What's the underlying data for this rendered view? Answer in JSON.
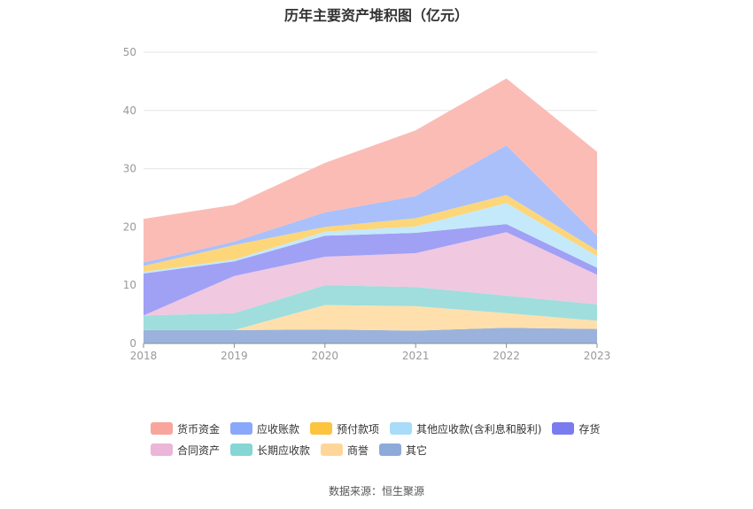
{
  "title": "历年主要资产堆积图（亿元）",
  "source": "数据来源：恒生聚源",
  "chart_data": {
    "type": "area",
    "stacked": true,
    "categories": [
      "2018",
      "2019",
      "2020",
      "2021",
      "2022",
      "2023"
    ],
    "ylim": [
      0,
      50
    ],
    "yticks": [
      0,
      10,
      20,
      30,
      40,
      50
    ],
    "grid": true,
    "legend_position": "bottom",
    "series": [
      {
        "name": "其它",
        "color": "#9bb3dc",
        "values": [
          2.3,
          2.3,
          2.4,
          2.2,
          2.7,
          2.5
        ]
      },
      {
        "name": "商誉",
        "color": "#ffe0ad",
        "values": [
          0.0,
          0.0,
          4.2,
          4.2,
          2.5,
          1.4
        ]
      },
      {
        "name": "长期应收款",
        "color": "#9fdedc",
        "values": [
          2.5,
          2.9,
          3.4,
          3.3,
          3.0,
          2.8
        ]
      },
      {
        "name": "合同资产",
        "color": "#f0c8e0",
        "values": [
          0.0,
          6.4,
          4.9,
          5.8,
          10.9,
          5.1
        ]
      },
      {
        "name": "存货",
        "color": "#a0a0f5",
        "values": [
          7.2,
          2.5,
          3.6,
          3.5,
          1.4,
          1.2
        ]
      },
      {
        "name": "其他应收款(含利息和股利)",
        "color": "#c4e9fb",
        "values": [
          0.3,
          0.3,
          0.7,
          1.1,
          3.6,
          2.0
        ]
      },
      {
        "name": "预付款项",
        "color": "#fdd679",
        "values": [
          1.0,
          2.5,
          0.8,
          1.4,
          1.4,
          1.0
        ]
      },
      {
        "name": "应收账款",
        "color": "#a9c0fb",
        "values": [
          0.6,
          0.6,
          2.5,
          3.8,
          8.5,
          2.5
        ]
      },
      {
        "name": "货币资金",
        "color": "#fbbcb6",
        "values": [
          7.5,
          6.3,
          8.5,
          11.3,
          11.5,
          14.4
        ]
      }
    ],
    "legend": [
      {
        "name": "货币资金",
        "color": "#f9a59c"
      },
      {
        "name": "应收账款",
        "color": "#8aa8fb"
      },
      {
        "name": "预付款项",
        "color": "#fcc43f"
      },
      {
        "name": "其他应收款(含利息和股利)",
        "color": "#a8dcf8"
      },
      {
        "name": "存货",
        "color": "#7b7bf0"
      },
      {
        "name": "合同资产",
        "color": "#ebb6d8"
      },
      {
        "name": "长期应收款",
        "color": "#85d6d4"
      },
      {
        "name": "商誉",
        "color": "#ffd699"
      },
      {
        "name": "其它",
        "color": "#8eaad9"
      }
    ]
  }
}
